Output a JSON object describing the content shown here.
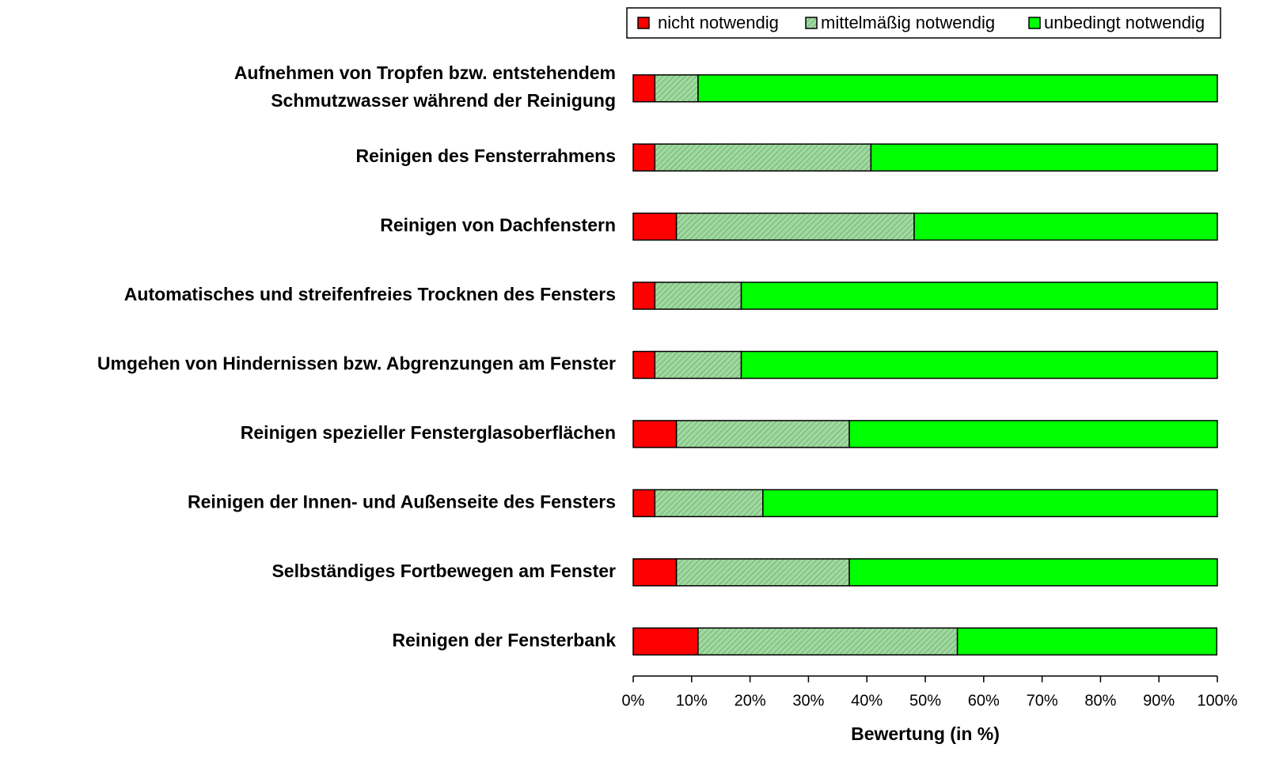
{
  "chart_data": {
    "type": "stacked-barh",
    "categories": [
      "Aufnehmen von Tropfen bzw. entstehendem\nSchmutzwasser während der Reinigung",
      "Reinigen des Fensterrahmens",
      "Reinigen von Dachfenstern",
      "Automatisches und streifenfreies Trocknen des Fensters",
      "Umgehen von Hindernissen bzw. Abgrenzungen am Fenster",
      "Reinigen spezieller Fensterglasoberflächen",
      "Reinigen der Innen- und Außenseite des Fensters",
      "Selbständiges Fortbewegen am Fenster",
      "Reinigen der Fensterbank"
    ],
    "series": [
      {
        "name": "nicht notwendig",
        "color": "#ff0000",
        "values": [
          3.7,
          3.7,
          7.4,
          3.7,
          3.7,
          7.4,
          3.7,
          7.4,
          11.1
        ]
      },
      {
        "name": "mittelmäßig notwendig",
        "color": "#99dd99",
        "pattern": "hatch",
        "values": [
          7.4,
          37.0,
          40.7,
          14.8,
          14.8,
          29.6,
          18.5,
          29.6,
          44.4
        ]
      },
      {
        "name": "unbedingt notwendig",
        "color": "#00ff00",
        "values": [
          88.9,
          59.3,
          51.9,
          81.5,
          81.5,
          63.0,
          77.8,
          63.0,
          44.4
        ]
      }
    ],
    "xlabel": "Bewertung (in %)",
    "xlim": [
      0,
      100
    ],
    "xticks": [
      {
        "value": 0,
        "label": "0%"
      },
      {
        "value": 10,
        "label": "10%"
      },
      {
        "value": 20,
        "label": "20%"
      },
      {
        "value": 30,
        "label": "30%"
      },
      {
        "value": 40,
        "label": "40%"
      },
      {
        "value": 50,
        "label": "50%"
      },
      {
        "value": 60,
        "label": "60%"
      },
      {
        "value": 70,
        "label": "70%"
      },
      {
        "value": 80,
        "label": "80%"
      },
      {
        "value": 90,
        "label": "90%"
      },
      {
        "value": 100,
        "label": "100%"
      }
    ],
    "legend": "top-right"
  }
}
